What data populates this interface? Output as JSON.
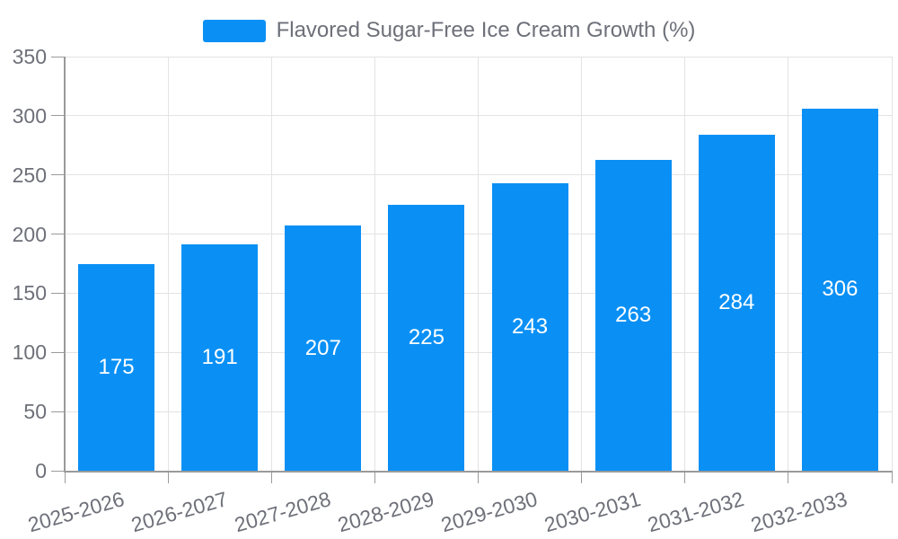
{
  "chart_data": {
    "type": "bar",
    "title": "Flavored Sugar-Free Ice Cream Growth (%)",
    "categories": [
      "2025-2026",
      "2026-2027",
      "2027-2028",
      "2028-2029",
      "2029-2030",
      "2030-2031",
      "2031-2032",
      "2032-2033"
    ],
    "values": [
      175,
      191,
      207,
      225,
      243,
      263,
      284,
      306
    ],
    "xlabel": "",
    "ylabel": "",
    "ylim": [
      0,
      350
    ],
    "yticks": [
      0,
      50,
      100,
      150,
      200,
      250,
      300,
      350
    ],
    "grid": "on",
    "legend_position": "top-center",
    "bar_color": "#0a90f5",
    "bar_value_label_color": "#ffffff",
    "axis_label_color": "#6e7079",
    "grid_color": "#e3e3e3",
    "axis_line_color": "#9a9a9a"
  }
}
